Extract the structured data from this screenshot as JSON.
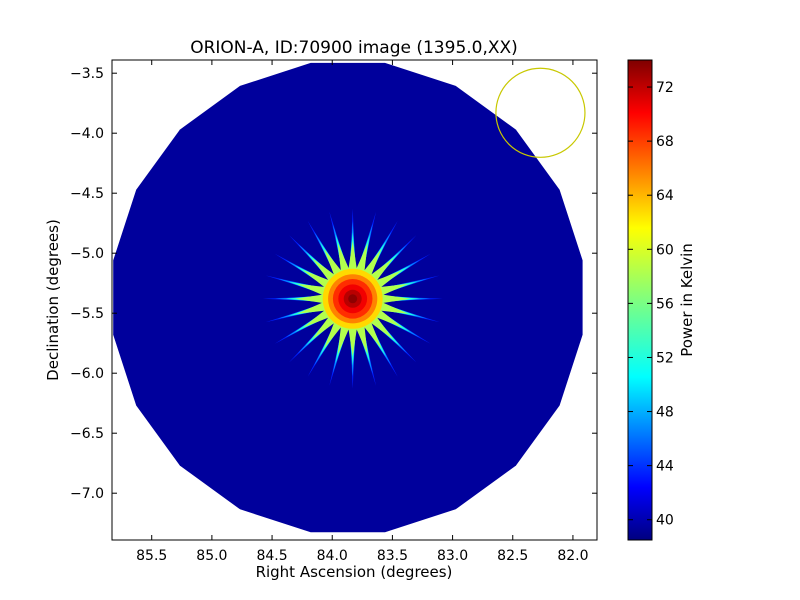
{
  "chart_data": {
    "type": "heatmap",
    "title": "ORION-A, ID:70900 image (1395.0,XX)",
    "xlabel": "Right Ascension (degrees)",
    "ylabel": "Declination (degrees)",
    "xlim": [
      85.83,
      81.8
    ],
    "ylim": [
      -7.39,
      -3.39
    ],
    "x_ticks": [
      85.5,
      85.0,
      84.5,
      84.0,
      83.5,
      83.0,
      82.5,
      82.0
    ],
    "x_tick_labels": [
      "85.5",
      "85.0",
      "84.5",
      "84.0",
      "83.5",
      "83.0",
      "82.5",
      "82.0"
    ],
    "y_ticks": [
      -3.5,
      -4.0,
      -4.5,
      -5.0,
      -5.5,
      -6.0,
      -6.5,
      -7.0
    ],
    "y_tick_labels": [
      "−3.5",
      "−4.0",
      "−4.5",
      "−5.0",
      "−5.5",
      "−6.0",
      "−6.5",
      "−7.0"
    ],
    "colormap": "jet",
    "colorbar": {
      "label": "Power in Kelvin",
      "range": [
        38.5,
        74
      ],
      "ticks": [
        40,
        44,
        48,
        52,
        56,
        60,
        64,
        68,
        72
      ],
      "tick_labels": [
        "40",
        "44",
        "48",
        "52",
        "56",
        "60",
        "64",
        "68",
        "72"
      ]
    },
    "map": {
      "center_ra": 83.87,
      "center_dec": -5.37,
      "map_radius_deg": 1.98,
      "map_polygon_sides": 20,
      "background_level": 39.5,
      "peak": {
        "ra": 83.83,
        "dec": -5.38,
        "value": 73.5
      },
      "source_core_radius_deg": 0.25,
      "sidelobe_spikes": 24,
      "sidelobe_extent_deg": 0.5
    },
    "beam_circle": {
      "ra": 82.27,
      "dec": -3.83,
      "radius_deg": 0.37,
      "color": "#c8c800"
    }
  }
}
